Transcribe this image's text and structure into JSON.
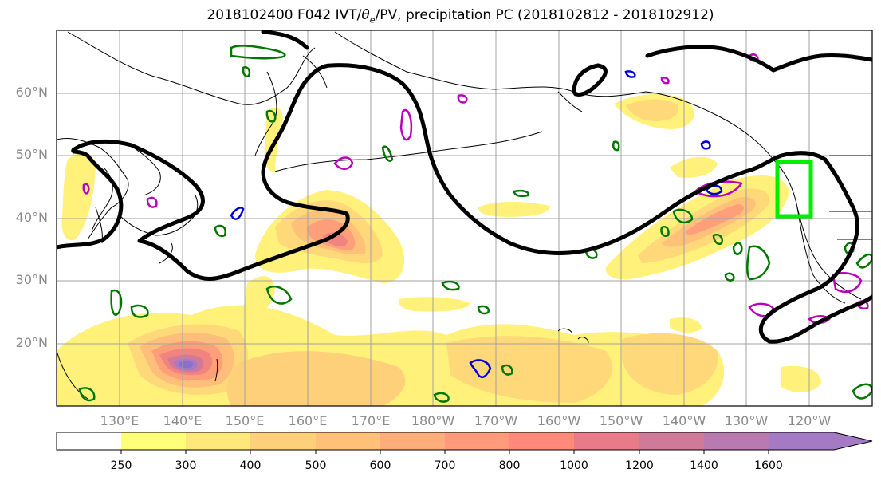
{
  "title": {
    "prefix": "2018102400 F042 IVT/",
    "theta": "θ",
    "theta_sub": "e",
    "suffix": "/PV, precipitation PC (2018102812 - 2018102912)"
  },
  "axes": {
    "lat_labels": [
      "60°N",
      "50°N",
      "40°N",
      "30°N",
      "20°N"
    ],
    "lon_labels": [
      "130°E",
      "140°E",
      "150°E",
      "160°E",
      "170°E",
      "180°W",
      "170°W",
      "160°W",
      "150°W",
      "140°W",
      "130°W",
      "120°W"
    ]
  },
  "colorbar": {
    "levels": [
      "250",
      "300",
      "400",
      "500",
      "600",
      "700",
      "800",
      "1000",
      "1200",
      "1400",
      "1600"
    ],
    "colors": [
      "#ffffff",
      "#ffff7a",
      "#ffe87a",
      "#ffd07a",
      "#ffc07a",
      "#ffad7a",
      "#ff9a7a",
      "#ff8a7a",
      "#e87a8a",
      "#d07a9a",
      "#b87ab0",
      "#a47ac4"
    ]
  },
  "colors": {
    "theta_contour": "#000000",
    "pv_green": "#007700",
    "pv_blue": "#0000dd",
    "pv_magenta": "#bb00bb",
    "box": "#00ee00"
  }
}
